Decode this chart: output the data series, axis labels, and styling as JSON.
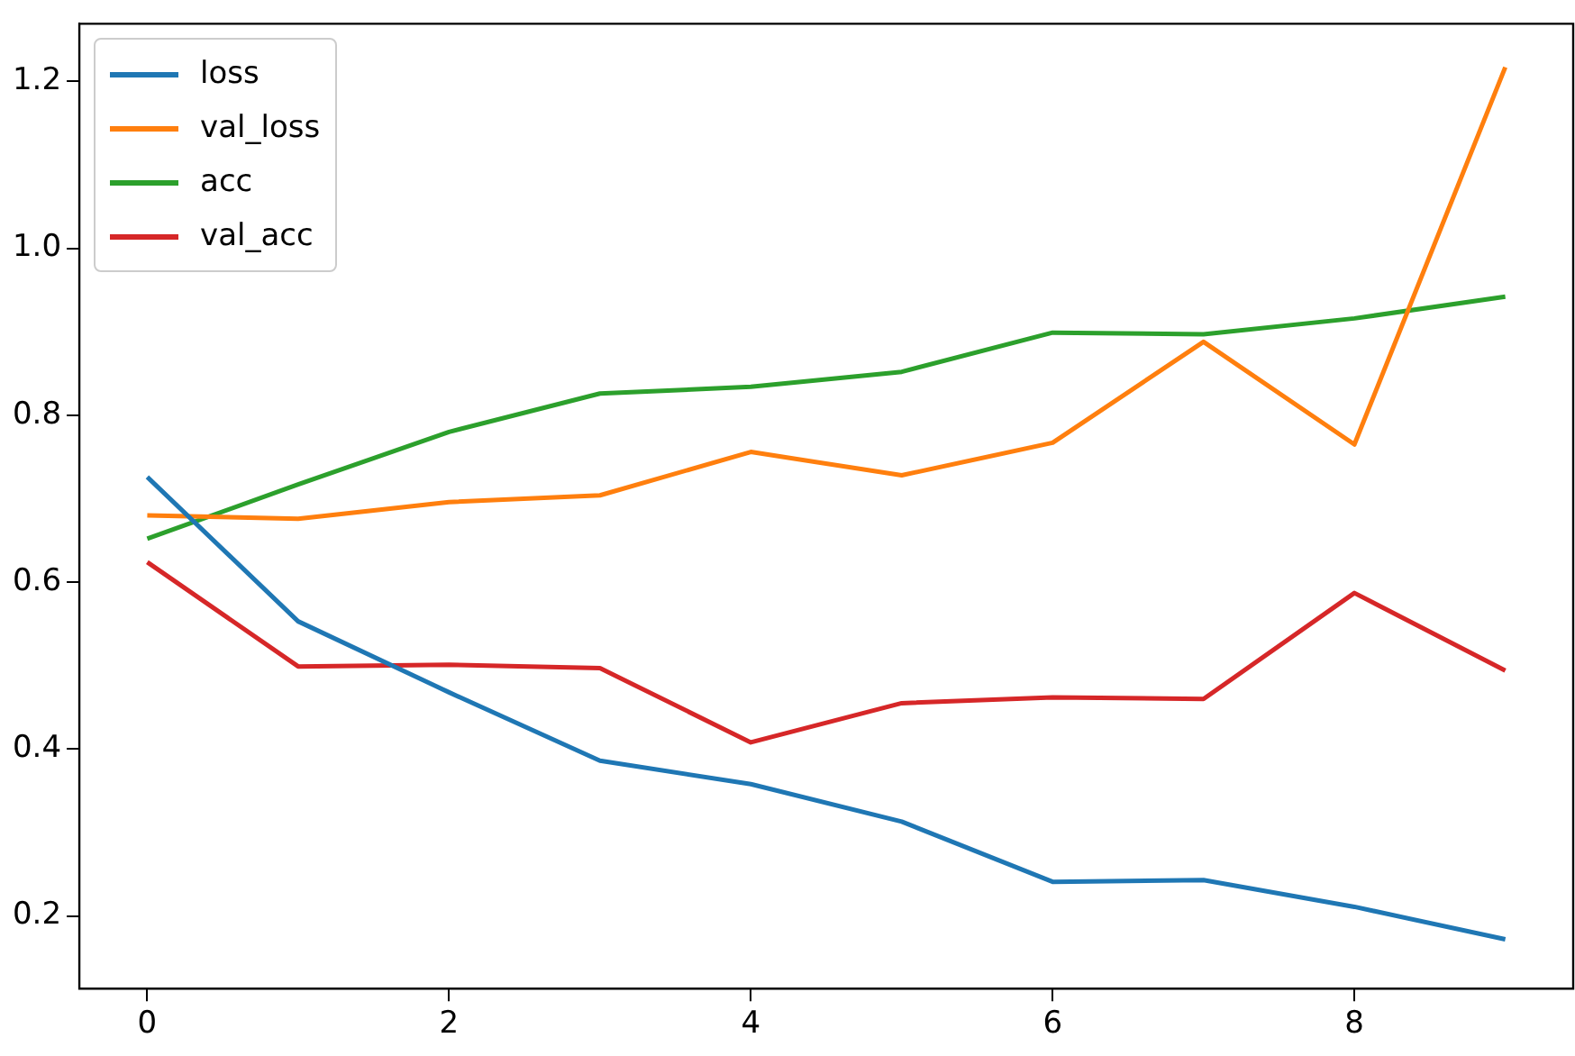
{
  "chart_data": {
    "type": "line",
    "x": [
      0,
      1,
      2,
      3,
      4,
      5,
      6,
      7,
      8,
      9
    ],
    "series": [
      {
        "name": "loss",
        "color": "#1f77b4",
        "values": [
          0.726,
          0.553,
          0.468,
          0.386,
          0.358,
          0.313,
          0.241,
          0.243,
          0.211,
          0.172
        ]
      },
      {
        "name": "val_loss",
        "color": "#ff7f0e",
        "values": [
          0.68,
          0.676,
          0.696,
          0.704,
          0.756,
          0.728,
          0.767,
          0.888,
          0.765,
          1.217
        ]
      },
      {
        "name": "acc",
        "color": "#2ca02c",
        "values": [
          0.652,
          0.717,
          0.78,
          0.826,
          0.834,
          0.852,
          0.899,
          0.897,
          0.916,
          0.942
        ]
      },
      {
        "name": "val_acc",
        "color": "#d62728",
        "values": [
          0.624,
          0.499,
          0.501,
          0.497,
          0.408,
          0.455,
          0.462,
          0.46,
          0.587,
          0.494
        ]
      }
    ],
    "xlim": [
      -0.45,
      9.45
    ],
    "xticks": [
      0,
      2,
      4,
      6,
      8
    ],
    "ylim": [
      0.113,
      1.269
    ],
    "yticks": [
      0.2,
      0.4,
      0.6,
      0.8,
      {
        "value": 1.0,
        "label": "1.0"
      },
      1.2
    ],
    "grid": false,
    "legend": "top left",
    "marker": "none",
    "line_style": "solid"
  }
}
